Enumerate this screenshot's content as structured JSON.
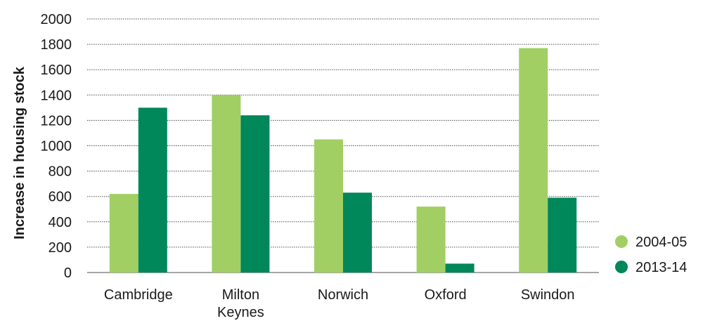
{
  "chart_data": {
    "type": "bar",
    "title": "",
    "xlabel": "",
    "ylabel": "Increase in housing stock",
    "ylim": [
      0,
      2000
    ],
    "yticks": [
      0,
      200,
      400,
      600,
      800,
      1000,
      1200,
      1400,
      1600,
      1800,
      2000
    ],
    "categories": [
      [
        "Cambridge"
      ],
      [
        "Milton",
        "Keynes"
      ],
      [
        "Norwich"
      ],
      [
        "Oxford"
      ],
      [
        "Swindon"
      ]
    ],
    "series": [
      {
        "name": "2004-05",
        "color": "#a1cf64",
        "values": [
          620,
          1400,
          1050,
          520,
          1770
        ]
      },
      {
        "name": "2013-14",
        "color": "#00875a",
        "values": [
          1300,
          1240,
          630,
          70,
          590
        ]
      }
    ],
    "grid": true,
    "legend_position": "bottom-right"
  }
}
